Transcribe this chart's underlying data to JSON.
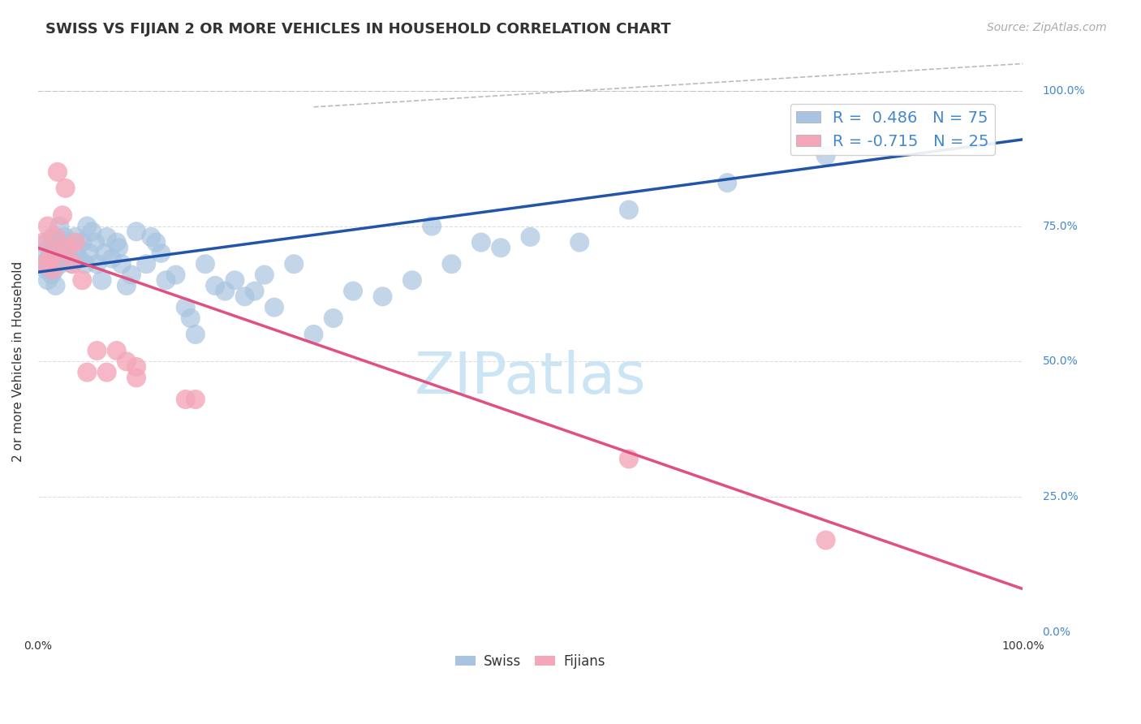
{
  "title": "SWISS VS FIJIAN 2 OR MORE VEHICLES IN HOUSEHOLD CORRELATION CHART",
  "source_text": "Source: ZipAtlas.com",
  "ylabel": "2 or more Vehicles in Household",
  "xlim": [
    0.0,
    1.0
  ],
  "ylim": [
    0.0,
    1.0
  ],
  "xtick_positions": [
    0.0,
    1.0
  ],
  "xtick_labels": [
    "0.0%",
    "100.0%"
  ],
  "ytick_positions": [
    0.0,
    0.25,
    0.5,
    0.75,
    1.0
  ],
  "ytick_labels": [
    "0.0%",
    "25.0%",
    "50.0%",
    "75.0%",
    "100.0%"
  ],
  "legend_label1": "R =  0.486   N = 75",
  "legend_label2": "R = -0.715   N = 25",
  "legend_color1": "#a8c4e0",
  "legend_color2": "#f4a7b9",
  "watermark": "ZIPatlas",
  "watermark_color": "#cce5f5",
  "swiss_color": "#a8c4e0",
  "fijian_color": "#f4a7b9",
  "swiss_line_color": "#2255aa",
  "fijian_line_color": "#e05080",
  "dashed_line_color": "#bbbbbb",
  "swiss_points": [
    [
      0.005,
      0.68
    ],
    [
      0.007,
      0.7
    ],
    [
      0.008,
      0.67
    ],
    [
      0.009,
      0.72
    ],
    [
      0.01,
      0.65
    ],
    [
      0.011,
      0.69
    ],
    [
      0.012,
      0.71
    ],
    [
      0.013,
      0.68
    ],
    [
      0.014,
      0.66
    ],
    [
      0.015,
      0.73
    ],
    [
      0.016,
      0.7
    ],
    [
      0.017,
      0.67
    ],
    [
      0.018,
      0.64
    ],
    [
      0.019,
      0.72
    ],
    [
      0.02,
      0.69
    ],
    [
      0.022,
      0.75
    ],
    [
      0.023,
      0.68
    ],
    [
      0.025,
      0.71
    ],
    [
      0.027,
      0.73
    ],
    [
      0.03,
      0.7
    ],
    [
      0.032,
      0.69
    ],
    [
      0.033,
      0.72
    ],
    [
      0.035,
      0.68
    ],
    [
      0.038,
      0.73
    ],
    [
      0.04,
      0.71
    ],
    [
      0.042,
      0.69
    ],
    [
      0.045,
      0.72
    ],
    [
      0.048,
      0.68
    ],
    [
      0.05,
      0.75
    ],
    [
      0.052,
      0.7
    ],
    [
      0.055,
      0.74
    ],
    [
      0.058,
      0.72
    ],
    [
      0.06,
      0.68
    ],
    [
      0.065,
      0.65
    ],
    [
      0.068,
      0.7
    ],
    [
      0.07,
      0.73
    ],
    [
      0.075,
      0.69
    ],
    [
      0.08,
      0.72
    ],
    [
      0.082,
      0.71
    ],
    [
      0.085,
      0.68
    ],
    [
      0.09,
      0.64
    ],
    [
      0.095,
      0.66
    ],
    [
      0.1,
      0.74
    ],
    [
      0.11,
      0.68
    ],
    [
      0.115,
      0.73
    ],
    [
      0.12,
      0.72
    ],
    [
      0.125,
      0.7
    ],
    [
      0.13,
      0.65
    ],
    [
      0.14,
      0.66
    ],
    [
      0.15,
      0.6
    ],
    [
      0.155,
      0.58
    ],
    [
      0.16,
      0.55
    ],
    [
      0.17,
      0.68
    ],
    [
      0.18,
      0.64
    ],
    [
      0.19,
      0.63
    ],
    [
      0.2,
      0.65
    ],
    [
      0.21,
      0.62
    ],
    [
      0.22,
      0.63
    ],
    [
      0.23,
      0.66
    ],
    [
      0.24,
      0.6
    ],
    [
      0.26,
      0.68
    ],
    [
      0.28,
      0.55
    ],
    [
      0.3,
      0.58
    ],
    [
      0.32,
      0.63
    ],
    [
      0.35,
      0.62
    ],
    [
      0.38,
      0.65
    ],
    [
      0.4,
      0.75
    ],
    [
      0.42,
      0.68
    ],
    [
      0.45,
      0.72
    ],
    [
      0.47,
      0.71
    ],
    [
      0.5,
      0.73
    ],
    [
      0.55,
      0.72
    ],
    [
      0.6,
      0.78
    ],
    [
      0.7,
      0.83
    ],
    [
      0.8,
      0.88
    ]
  ],
  "fijian_points": [
    [
      0.005,
      0.72
    ],
    [
      0.008,
      0.68
    ],
    [
      0.01,
      0.75
    ],
    [
      0.012,
      0.69
    ],
    [
      0.015,
      0.67
    ],
    [
      0.018,
      0.73
    ],
    [
      0.02,
      0.7
    ],
    [
      0.025,
      0.77
    ],
    [
      0.03,
      0.71
    ],
    [
      0.035,
      0.68
    ],
    [
      0.038,
      0.72
    ],
    [
      0.045,
      0.65
    ],
    [
      0.05,
      0.48
    ],
    [
      0.06,
      0.52
    ],
    [
      0.07,
      0.48
    ],
    [
      0.08,
      0.52
    ],
    [
      0.09,
      0.5
    ],
    [
      0.1,
      0.47
    ],
    [
      0.15,
      0.43
    ],
    [
      0.16,
      0.43
    ],
    [
      0.02,
      0.85
    ],
    [
      0.028,
      0.82
    ],
    [
      0.6,
      0.32
    ],
    [
      0.8,
      0.17
    ],
    [
      0.1,
      0.49
    ]
  ],
  "swiss_line_y_start": 0.665,
  "swiss_line_y_end": 0.91,
  "fijian_line_y_start": 0.71,
  "fijian_line_y_end": 0.08,
  "grid_color": "#dddddd",
  "background_color": "#ffffff",
  "title_fontsize": 13,
  "axis_label_fontsize": 11,
  "tick_fontsize": 10,
  "legend_fontsize": 14,
  "source_fontsize": 10,
  "watermark_fontsize": 52
}
